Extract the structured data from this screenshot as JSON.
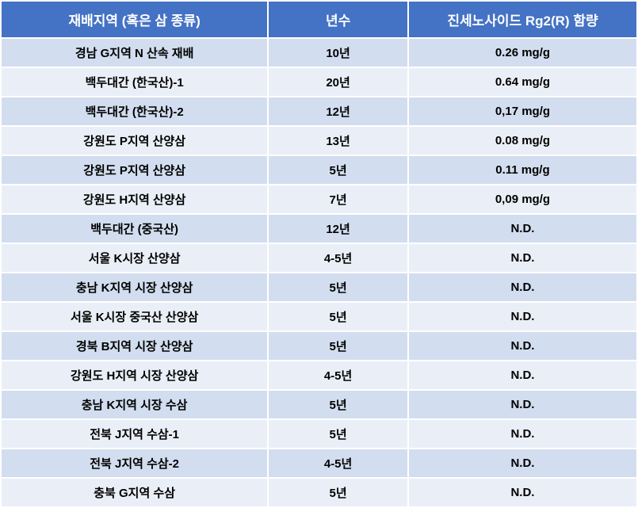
{
  "table": {
    "header_bg": "#4472c4",
    "header_color": "#ffffff",
    "row_odd_bg": "#d2deef",
    "row_even_bg": "#eaeff7",
    "columns": [
      "재배지역 (혹은 삼 종류)",
      "년수",
      "진세노사이드 Rg2(R) 함량"
    ],
    "rows": [
      [
        "경남 G지역 N 산속 재배",
        "10년",
        "0.26 mg/g"
      ],
      [
        "백두대간 (한국산)-1",
        "20년",
        "0.64 mg/g"
      ],
      [
        "백두대간 (한국산)-2",
        "12년",
        "0,17 mg/g"
      ],
      [
        "강원도 P지역 산양삼",
        "13년",
        "0.08 mg/g"
      ],
      [
        "강원도 P지역 산양삼",
        "5년",
        "0.11 mg/g"
      ],
      [
        "강원도 H지역 산양삼",
        "7년",
        "0,09 mg/g"
      ],
      [
        "백두대간 (중국산)",
        "12년",
        "N.D."
      ],
      [
        "서울  K시장 산양삼",
        "4-5년",
        "N.D."
      ],
      [
        "충남 K지역 시장 산양삼",
        "5년",
        "N.D."
      ],
      [
        "서울 K시장 중국산 산양삼",
        "5년",
        "N.D."
      ],
      [
        "경북 B지역 시장 산양삼",
        "5년",
        "N.D."
      ],
      [
        "강원도 H지역 시장 산양삼",
        "4-5년",
        "N.D."
      ],
      [
        "충남 K지역 시장 수삼",
        "5년",
        "N.D."
      ],
      [
        "전북 J지역 수삼-1",
        "5년",
        "N.D."
      ],
      [
        "전북 J지역 수삼-2",
        "4-5년",
        "N.D."
      ],
      [
        "충북 G지역 수삼",
        "5년",
        "N.D."
      ]
    ]
  }
}
